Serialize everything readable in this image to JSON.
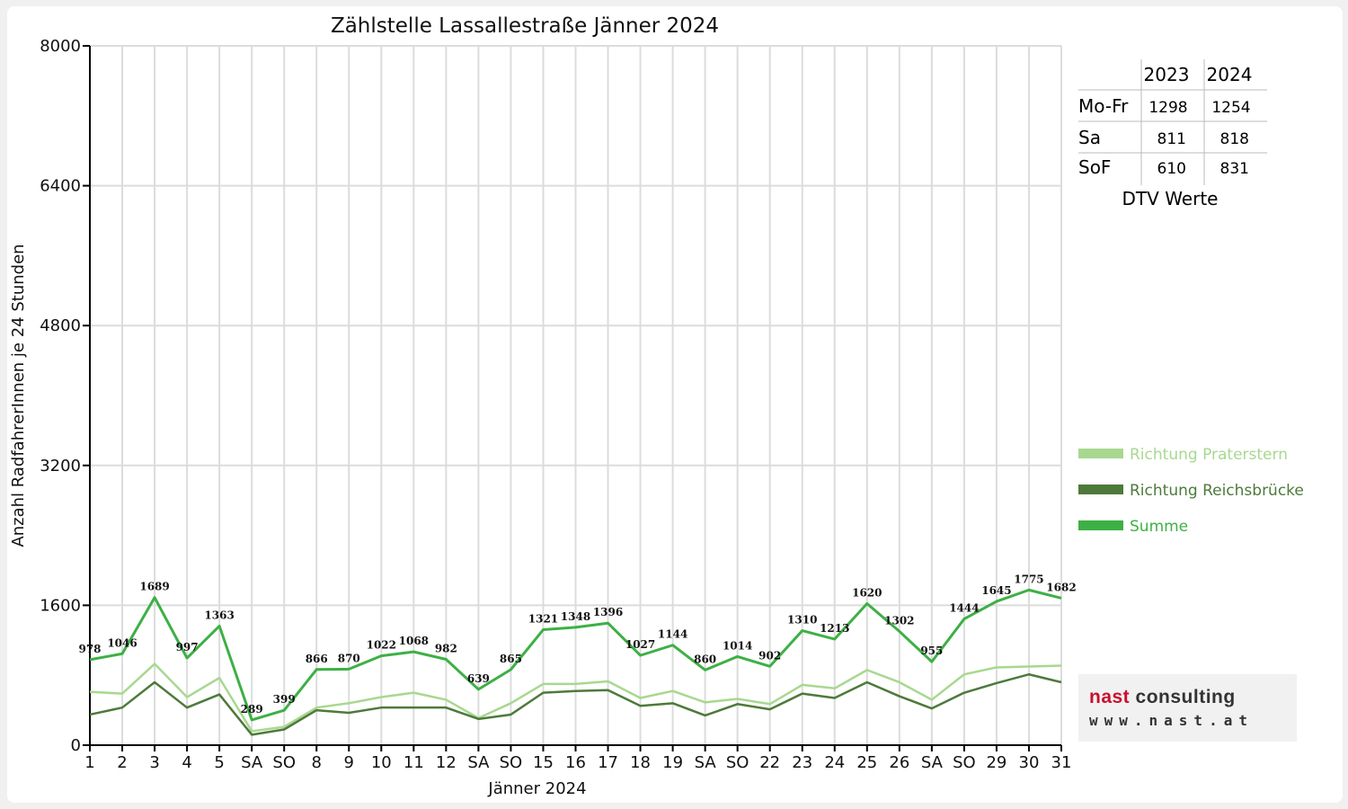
{
  "chart_data": {
    "type": "line",
    "title": "Zählstelle Lassallestraße Jänner 2024",
    "xlabel": "Jänner 2024",
    "ylabel": "Anzahl RadfahrerInnen je 24 Stunden",
    "ylim": [
      0,
      8000
    ],
    "yticks": [
      "0",
      "1600",
      "3200",
      "4800",
      "6400",
      "8000"
    ],
    "grid": true,
    "legend_position": "right",
    "categories": [
      "1",
      "2",
      "3",
      "4",
      "5",
      "SA",
      "SO",
      "8",
      "9",
      "10",
      "11",
      "12",
      "SA",
      "SO",
      "15",
      "16",
      "17",
      "18",
      "19",
      "SA",
      "SO",
      "22",
      "23",
      "24",
      "25",
      "26",
      "SA",
      "SO",
      "29",
      "30",
      "31"
    ],
    "red_categories": [
      0,
      6,
      13,
      20,
      27
    ],
    "red_color": "#e00000",
    "series": [
      {
        "name": "Richtung Praterstern",
        "color": "#a8d88f",
        "values": [
          610,
          590,
          930,
          550,
          770,
          160,
          210,
          430,
          480,
          550,
          600,
          520,
          310,
          480,
          700,
          700,
          730,
          540,
          620,
          490,
          530,
          470,
          690,
          650,
          860,
          720,
          520,
          810,
          890,
          900,
          910
        ]
      },
      {
        "name": "Richtung Reichsbrücke",
        "color": "#4d7a3a",
        "values": [
          350,
          430,
          720,
          430,
          580,
          120,
          180,
          400,
          370,
          430,
          430,
          430,
          300,
          350,
          600,
          620,
          630,
          450,
          480,
          340,
          470,
          410,
          590,
          540,
          720,
          560,
          420,
          600,
          710,
          810,
          720
        ]
      },
      {
        "name": "Summe",
        "color": "#3db045",
        "values": [
          978,
          1046,
          1689,
          997,
          1363,
          289,
          399,
          866,
          870,
          1022,
          1068,
          982,
          639,
          865,
          1321,
          1348,
          1396,
          1027,
          1144,
          860,
          1014,
          902,
          1310,
          1213,
          1620,
          1302,
          955,
          1444,
          1645,
          1775,
          1682
        ],
        "labels": [
          "978",
          "1046",
          "1689",
          "997",
          "1363",
          "289",
          "399",
          "866",
          "870",
          "1022",
          "1068",
          "982",
          "639",
          "865",
          "1321",
          "1348",
          "1396",
          "1027",
          "1144",
          "860",
          "1014",
          "902",
          "1310",
          "1213",
          "1620",
          "1302",
          "955",
          "1444",
          "1645",
          "1775",
          "1682"
        ]
      }
    ]
  },
  "dtv_table": {
    "headers": [
      "",
      "2023",
      "2024"
    ],
    "rows": [
      [
        "Mo-Fr",
        "1298",
        "1254"
      ],
      [
        "Sa",
        "811",
        "818"
      ],
      [
        "SoF",
        "610",
        "831"
      ]
    ],
    "caption": "DTV Werte"
  },
  "logo": {
    "name_first": "nast",
    "name_rest": " consulting",
    "url": "www.nast.at"
  }
}
